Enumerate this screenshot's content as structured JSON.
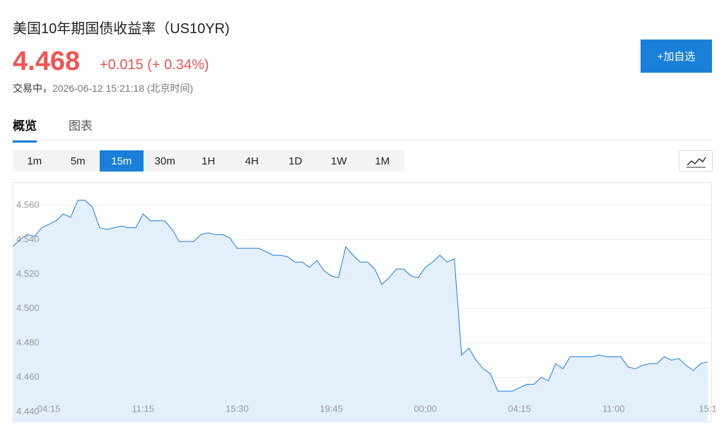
{
  "header": {
    "title": "美国10年期国债收益率（US10YR)",
    "price": "4.468",
    "change": "+0.015",
    "change_pct": "(+ 0.34%)",
    "status": "交易中，",
    "timestamp": "2026-06-12 15:21:18 (北京时间)",
    "watch_button": "+加自选"
  },
  "tabs": {
    "items": [
      "概览",
      "图表"
    ],
    "active": 0
  },
  "intervals": {
    "items": [
      "1m",
      "5m",
      "15m",
      "30m",
      "1H",
      "4H",
      "1D",
      "1W",
      "1M"
    ],
    "active": 2
  },
  "chart_data": {
    "type": "area",
    "color": "#1a7fd9",
    "fill": "#e3effb",
    "grid": true,
    "categories": [
      null,
      null,
      null,
      null,
      null,
      "04:15",
      null,
      null,
      null,
      null,
      null,
      null,
      null,
      null,
      null,
      null,
      null,
      null,
      "11:15",
      null,
      null,
      null,
      null,
      null,
      null,
      null,
      null,
      null,
      null,
      null,
      null,
      "15:30",
      null,
      null,
      null,
      null,
      null,
      null,
      null,
      null,
      null,
      null,
      null,
      null,
      "19:45",
      null,
      null,
      null,
      null,
      null,
      null,
      null,
      null,
      null,
      null,
      null,
      null,
      "00:00",
      null,
      null,
      null,
      null,
      null,
      null,
      null,
      null,
      null,
      null,
      null,
      null,
      "04:15",
      null,
      null,
      null,
      null,
      null,
      null,
      null,
      null,
      null,
      null,
      null,
      null,
      "11:00",
      null,
      null,
      null,
      null,
      null,
      null,
      null,
      null,
      null,
      null,
      null,
      null,
      "15:1"
    ],
    "values": [
      4.536,
      4.54,
      4.543,
      4.542,
      4.547,
      4.549,
      4.551,
      4.555,
      4.553,
      4.563,
      4.563,
      4.559,
      4.547,
      4.546,
      4.547,
      4.548,
      4.547,
      4.547,
      4.555,
      4.551,
      4.551,
      4.551,
      4.546,
      4.539,
      4.539,
      4.539,
      4.543,
      4.544,
      4.543,
      4.543,
      4.541,
      4.535,
      4.535,
      4.535,
      4.535,
      4.533,
      4.531,
      4.531,
      4.53,
      4.527,
      4.527,
      4.524,
      4.528,
      4.522,
      4.519,
      4.518,
      4.536,
      4.531,
      4.527,
      4.527,
      4.523,
      4.514,
      4.518,
      4.523,
      4.523,
      4.519,
      4.518,
      4.524,
      4.527,
      4.531,
      4.527,
      4.529,
      4.473,
      4.477,
      4.47,
      4.465,
      4.462,
      4.452,
      4.452,
      4.452,
      4.454,
      4.456,
      4.456,
      4.46,
      4.458,
      4.468,
      4.465,
      4.472,
      4.472,
      4.472,
      4.472,
      4.473,
      4.472,
      4.472,
      4.472,
      4.466,
      4.465,
      4.467,
      4.468,
      4.468,
      4.472,
      4.47,
      4.471,
      4.467,
      4.464,
      4.468,
      4.469
    ],
    "ylim": [
      4.434,
      4.5735
    ],
    "yticks": [
      {
        "value": 4.44,
        "label": "4.440"
      },
      {
        "value": 4.46,
        "label": "4.460"
      },
      {
        "value": 4.48,
        "label": "4.480"
      },
      {
        "value": 4.5,
        "label": "4.500"
      },
      {
        "value": 4.52,
        "label": "4.520"
      },
      {
        "value": 4.54,
        "label": "4.540"
      },
      {
        "value": 4.56,
        "label": "4.560"
      }
    ]
  }
}
